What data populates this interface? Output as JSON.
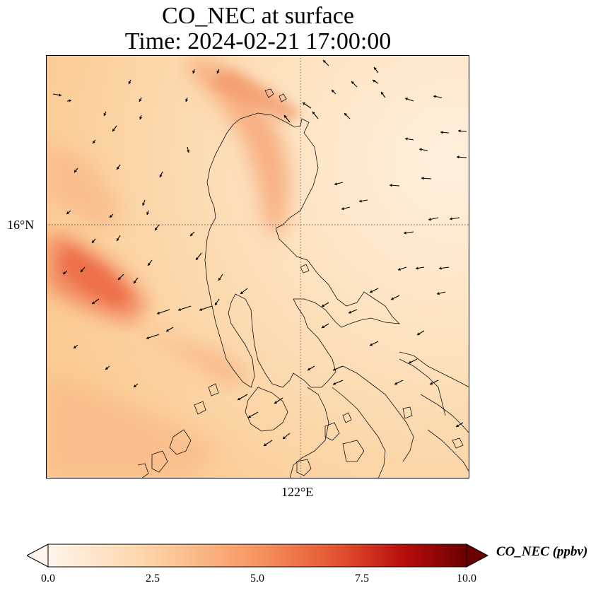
{
  "title": {
    "line1": "CO_NEC at surface",
    "line2": "Time: 2024-02-21 17:00:00"
  },
  "axes": {
    "lat_label": "16°N",
    "lon_label": "122°E"
  },
  "colorbar": {
    "label": "CO_NEC (ppbv)",
    "ticks": [
      "0.0",
      "2.5",
      "5.0",
      "7.5",
      "10.0"
    ],
    "min": 0,
    "max": 10,
    "colors": [
      "#fff5eb",
      "#fdd9b0",
      "#f99d65",
      "#ee6a45",
      "#c1110f",
      "#6b0000"
    ]
  }
}
